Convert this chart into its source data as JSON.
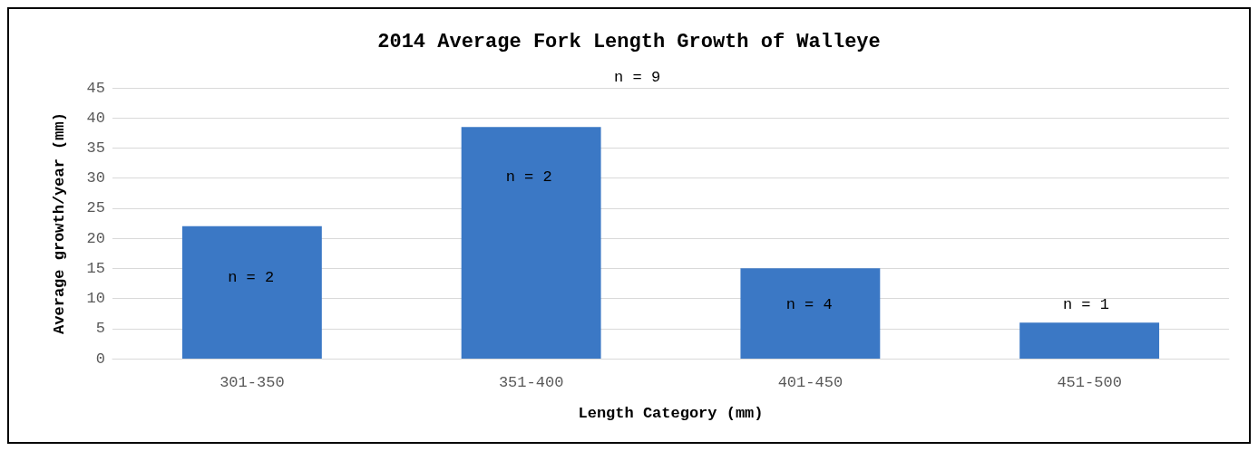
{
  "chart_data": {
    "type": "bar",
    "title": "2014 Average Fork Length Growth of Walleye",
    "xlabel": "Length Category (mm)",
    "ylabel": "Average growth/year (mm)",
    "categories": [
      "301-350",
      "351-400",
      "401-450",
      "451-500"
    ],
    "values": [
      22,
      38.5,
      15,
      6
    ],
    "color": "#3b78c5",
    "ylim": [
      0,
      45
    ],
    "yticks": [
      0,
      5,
      10,
      15,
      20,
      25,
      30,
      35,
      40,
      45
    ],
    "grid": "y",
    "annotations": [
      "n = 2",
      "n = 9",
      "n = 2",
      "n = 4",
      "n = 1"
    ]
  }
}
